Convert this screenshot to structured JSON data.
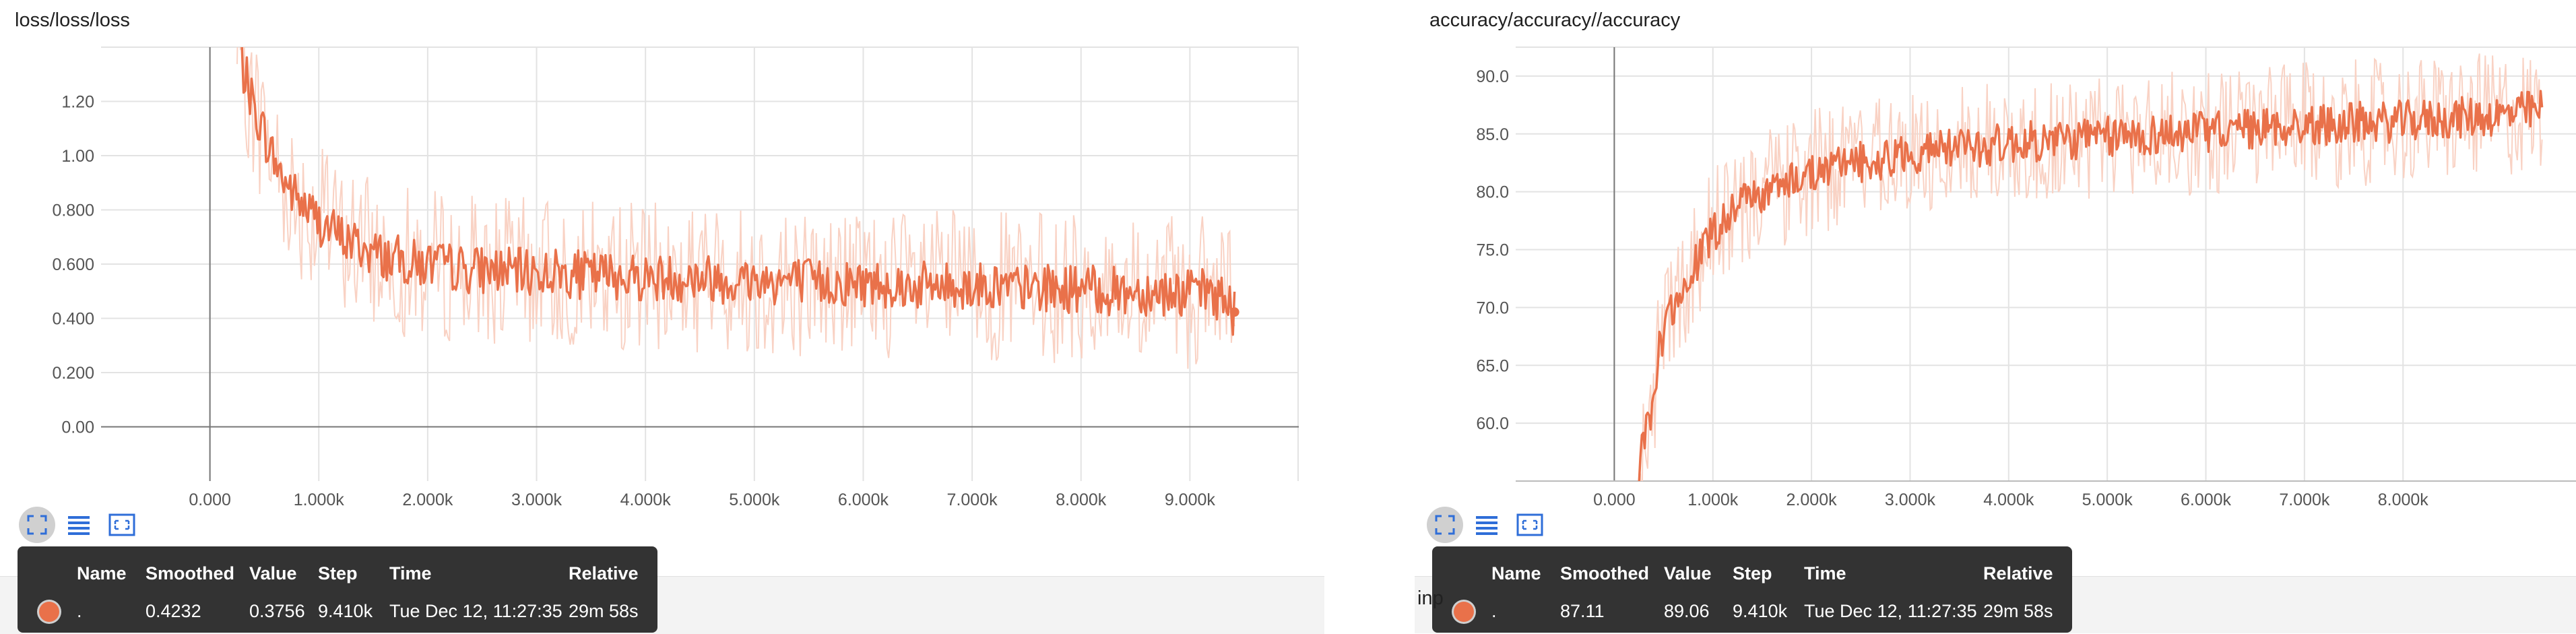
{
  "chart_data": [
    {
      "type": "line",
      "title": "loss/loss/loss",
      "xlabel": "",
      "ylabel": "",
      "x_ticks": [
        "0.000",
        "1.000k",
        "2.000k",
        "3.000k",
        "4.000k",
        "5.000k",
        "6.000k",
        "7.000k",
        "8.000k",
        "9.000k"
      ],
      "y_ticks": [
        "0.00",
        "0.200",
        "0.400",
        "0.600",
        "0.800",
        "1.00",
        "1.20"
      ],
      "xlim": [
        -1000,
        10000
      ],
      "ylim": [
        -0.2,
        1.4
      ],
      "grid": true,
      "series": [
        {
          "color": "#e9714a",
          "points": [
            [
              250,
              1.45
            ],
            [
              300,
              1.32
            ],
            [
              350,
              1.26
            ],
            [
              400,
              1.18
            ],
            [
              450,
              1.13
            ],
            [
              500,
              1.08
            ],
            [
              550,
              1.02
            ],
            [
              600,
              0.98
            ],
            [
              650,
              0.93
            ],
            [
              700,
              0.9
            ],
            [
              750,
              0.87
            ],
            [
              800,
              0.84
            ],
            [
              900,
              0.8
            ],
            [
              1000,
              0.76
            ],
            [
              1100,
              0.73
            ],
            [
              1200,
              0.7
            ],
            [
              1300,
              0.68
            ],
            [
              1400,
              0.66
            ],
            [
              1500,
              0.64
            ],
            [
              1600,
              0.63
            ],
            [
              1700,
              0.62
            ],
            [
              1800,
              0.61
            ],
            [
              1900,
              0.6
            ],
            [
              2000,
              0.6
            ],
            [
              2200,
              0.59
            ],
            [
              2400,
              0.58
            ],
            [
              2600,
              0.58
            ],
            [
              2800,
              0.57
            ],
            [
              3000,
              0.57
            ],
            [
              3200,
              0.57
            ],
            [
              3400,
              0.56
            ],
            [
              3600,
              0.56
            ],
            [
              3800,
              0.56
            ],
            [
              4000,
              0.55
            ],
            [
              4200,
              0.55
            ],
            [
              4400,
              0.55
            ],
            [
              4600,
              0.55
            ],
            [
              4800,
              0.54
            ],
            [
              5000,
              0.54
            ],
            [
              5200,
              0.54
            ],
            [
              5400,
              0.54
            ],
            [
              5600,
              0.53
            ],
            [
              5800,
              0.53
            ],
            [
              6000,
              0.53
            ],
            [
              6200,
              0.53
            ],
            [
              6400,
              0.52
            ],
            [
              6600,
              0.52
            ],
            [
              6800,
              0.52
            ],
            [
              7000,
              0.52
            ],
            [
              7200,
              0.52
            ],
            [
              7400,
              0.51
            ],
            [
              7600,
              0.51
            ],
            [
              7800,
              0.51
            ],
            [
              8000,
              0.51
            ],
            [
              8200,
              0.5
            ],
            [
              8400,
              0.5
            ],
            [
              8600,
              0.5
            ],
            [
              8800,
              0.5
            ],
            [
              9000,
              0.49
            ],
            [
              9200,
              0.5
            ],
            [
              9300,
              0.47
            ],
            [
              9410,
              0.4232
            ]
          ],
          "noise": 0.09,
          "raw_noise": 0.28
        }
      ],
      "end_point": [
        9410,
        0.4232
      ]
    },
    {
      "type": "line",
      "title": "accuracy/accuracy//accuracy",
      "xlabel": "",
      "ylabel": "",
      "x_ticks": [
        "0.000",
        "1.000k",
        "2.000k",
        "3.000k",
        "4.000k",
        "5.000k",
        "6.000k",
        "7.000k",
        "8.000k"
      ],
      "y_ticks": [
        "60.0",
        "65.0",
        "70.0",
        "75.0",
        "80.0",
        "85.0",
        "90.0"
      ],
      "xlim": [
        -1000,
        10000
      ],
      "ylim": [
        55,
        92.5
      ],
      "grid": true,
      "series": [
        {
          "color": "#e9714a",
          "points": [
            [
              250,
              55.5
            ],
            [
              300,
              58.5
            ],
            [
              350,
              60.0
            ],
            [
              400,
              62.0
            ],
            [
              450,
              66.0
            ],
            [
              500,
              68.0
            ],
            [
              600,
              70.0
            ],
            [
              700,
              72.0
            ],
            [
              800,
              73.5
            ],
            [
              900,
              75.0
            ],
            [
              1000,
              76.5
            ],
            [
              1100,
              77.5
            ],
            [
              1200,
              78.5
            ],
            [
              1400,
              79.5
            ],
            [
              1600,
              80.3
            ],
            [
              1800,
              81.0
            ],
            [
              2000,
              81.6
            ],
            [
              2200,
              82.0
            ],
            [
              2400,
              82.4
            ],
            [
              2600,
              82.7
            ],
            [
              2800,
              83.0
            ],
            [
              3000,
              83.3
            ],
            [
              3200,
              83.5
            ],
            [
              3400,
              83.7
            ],
            [
              3600,
              83.9
            ],
            [
              3800,
              84.0
            ],
            [
              4000,
              84.2
            ],
            [
              4200,
              84.3
            ],
            [
              4400,
              84.4
            ],
            [
              4600,
              84.5
            ],
            [
              4800,
              84.6
            ],
            [
              5000,
              84.7
            ],
            [
              5200,
              84.8
            ],
            [
              5400,
              84.9
            ],
            [
              5600,
              85.0
            ],
            [
              5800,
              85.1
            ],
            [
              6000,
              85.2
            ],
            [
              6200,
              85.3
            ],
            [
              6400,
              85.4
            ],
            [
              6600,
              85.5
            ],
            [
              6800,
              85.6
            ],
            [
              7000,
              85.7
            ],
            [
              7200,
              85.8
            ],
            [
              7400,
              85.9
            ],
            [
              7600,
              86.0
            ],
            [
              7800,
              86.0
            ],
            [
              8000,
              86.1
            ],
            [
              8200,
              86.2
            ],
            [
              8400,
              86.3
            ],
            [
              8600,
              86.4
            ],
            [
              8800,
              86.5
            ],
            [
              9000,
              86.6
            ],
            [
              9410,
              87.11
            ]
          ],
          "noise": 1.8,
          "raw_noise": 5.5
        }
      ]
    }
  ],
  "toolbar_icons": [
    "expand-icon",
    "list-icon",
    "fit-domain-icon"
  ],
  "tooltips": [
    {
      "headers": {
        "name": "Name",
        "smoothed": "Smoothed",
        "value": "Value",
        "step": "Step",
        "time": "Time",
        "relative": "Relative"
      },
      "row": {
        "name": ".",
        "smoothed": "0.4232",
        "value": "0.3756",
        "step": "9.410k",
        "time": "Tue Dec 12, 11:27:35",
        "relative": "29m 58s"
      }
    },
    {
      "headers": {
        "name": "Name",
        "smoothed": "Smoothed",
        "value": "Value",
        "step": "Step",
        "time": "Time",
        "relative": "Relative"
      },
      "row": {
        "name": ".",
        "smoothed": "87.11",
        "value": "89.06",
        "step": "9.410k",
        "time": "Tue Dec 12, 11:27:35",
        "relative": "29m 58s"
      }
    }
  ],
  "behind_text": "inp",
  "colors": {
    "line": "#e9714a",
    "raw_line": "#f7c9b8",
    "grid": "#e3e3e3",
    "axis": "#777777",
    "toolbar_icon": "#2f6ed8"
  }
}
